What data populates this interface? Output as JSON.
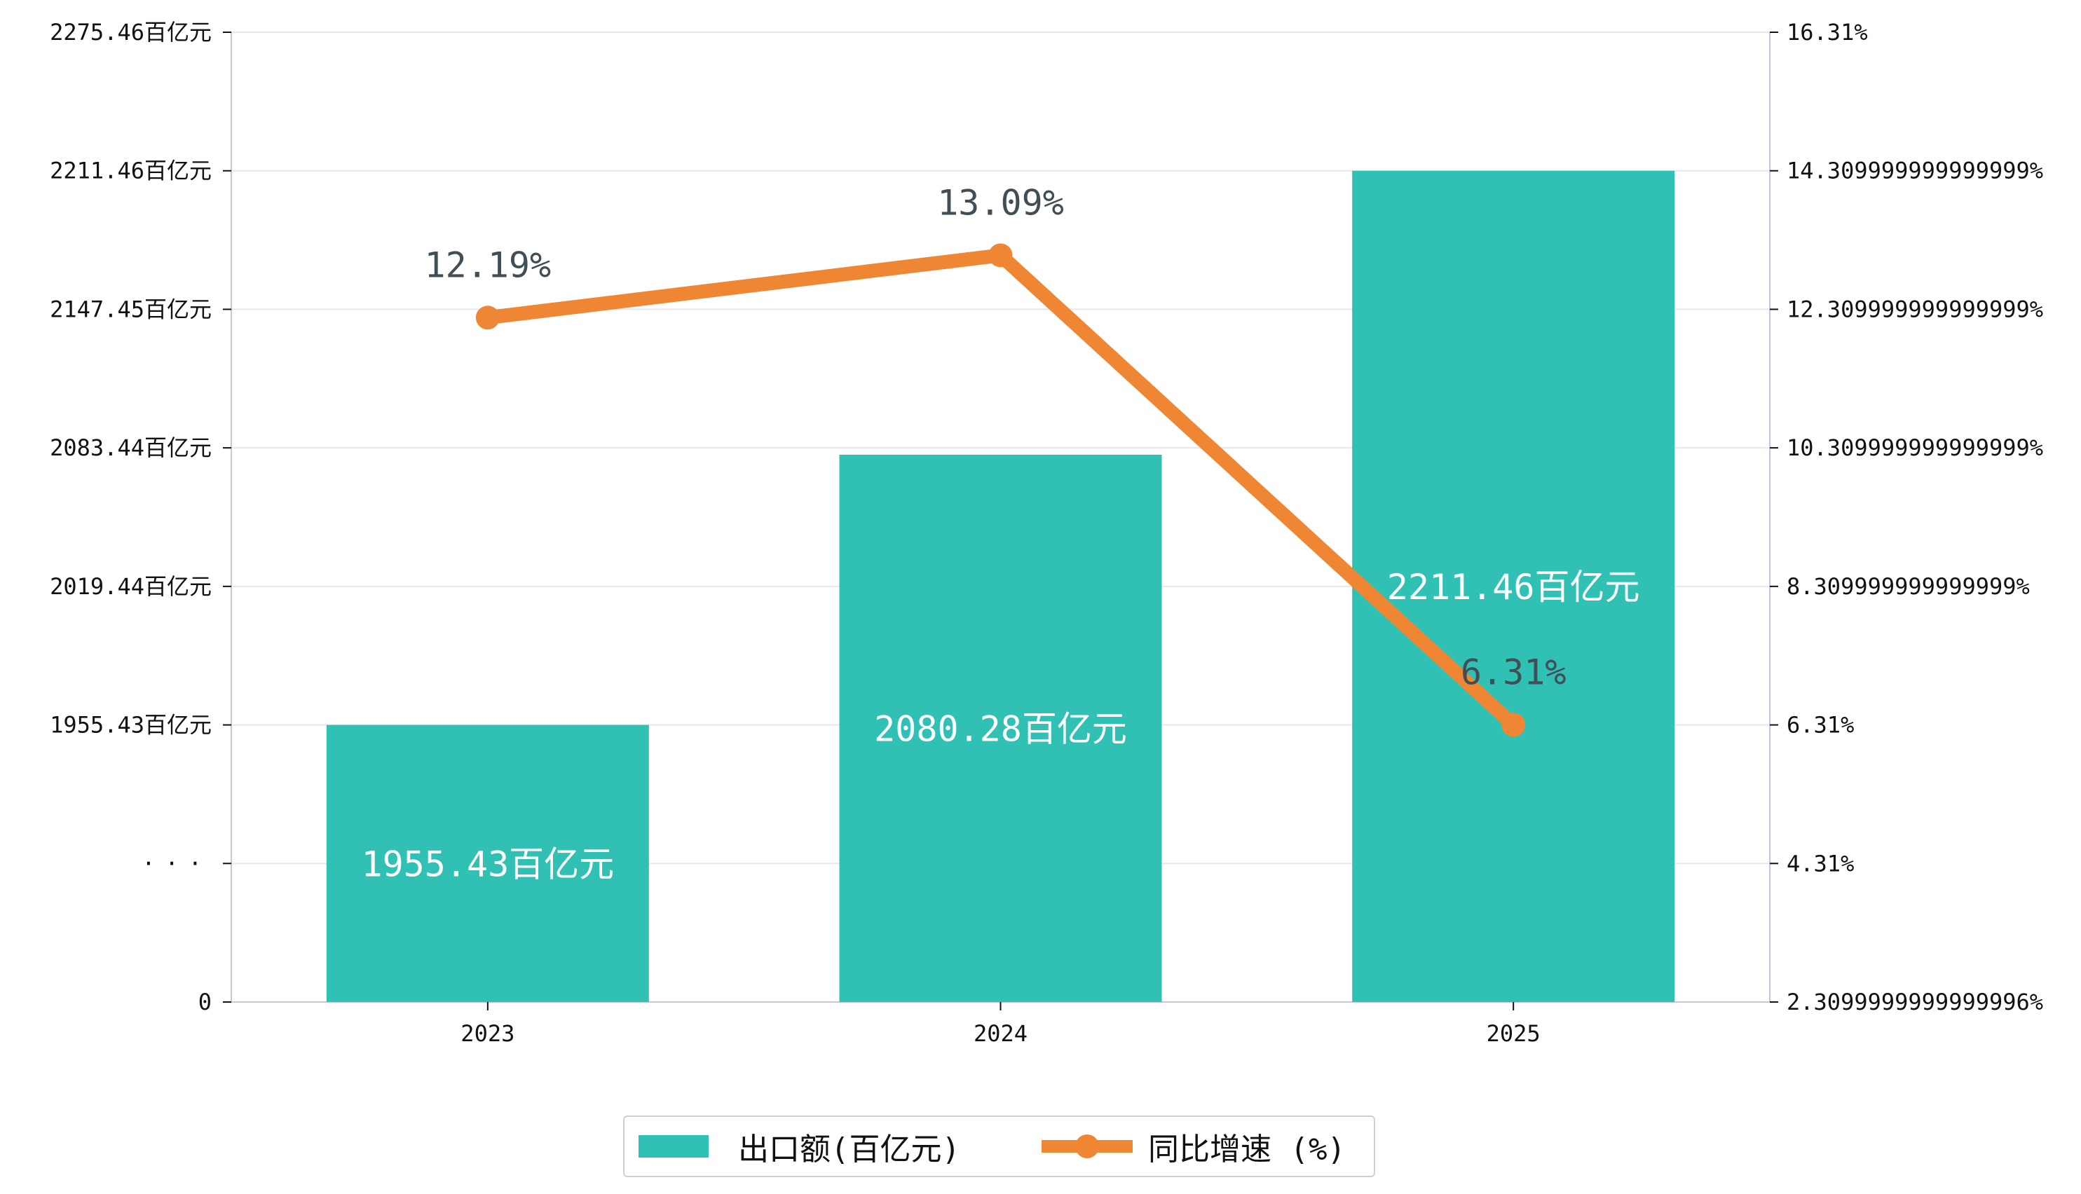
{
  "chart_data": {
    "type": "bar+line",
    "categories": [
      "2023",
      "2024",
      "2025"
    ],
    "series": [
      {
        "name": "出口额(百亿元)",
        "type": "bar",
        "axis": "left",
        "values": [
          1955.43,
          2080.28,
          2211.46
        ],
        "value_labels": [
          "1955.43百亿元",
          "2080.28百亿元",
          "2211.46百亿元"
        ],
        "color": "#31c1b4"
      },
      {
        "name": "同比增速 (%)",
        "type": "line",
        "axis": "right",
        "values": [
          12.19,
          13.09,
          6.31
        ],
        "value_labels": [
          "12.19%",
          "13.09%",
          "6.31%"
        ],
        "color": "#ef8633"
      }
    ],
    "left_axis": {
      "tick_values": [
        0,
        null,
        1955.43,
        2019.44,
        2083.44,
        2147.45,
        2211.46,
        2275.46
      ],
      "tick_labels": [
        "0",
        "···",
        "1955.43百亿元",
        "2019.44百亿元",
        "2083.44百亿元",
        "2147.45百亿元",
        "2211.46百亿元",
        "2275.46百亿元"
      ],
      "broken": true
    },
    "right_axis": {
      "range": [
        2.3099999999999996,
        16.31
      ],
      "tick_values": [
        2.3099999999999996,
        4.31,
        6.31,
        8.309999999999999,
        10.309999999999999,
        12.309999999999999,
        14.309999999999999,
        16.31
      ],
      "tick_labels": [
        "2.3099999999999996%",
        "4.31%",
        "6.31%",
        "8.309999999999999%",
        "10.309999999999999%",
        "12.309999999999999%",
        "14.309999999999999%",
        "16.31%"
      ]
    },
    "grid": true,
    "legend_position": "bottom-center",
    "colors": {
      "grid": "#e6e6f2",
      "axis": "#c8c8dc",
      "line_label": "#3f4f55"
    }
  }
}
